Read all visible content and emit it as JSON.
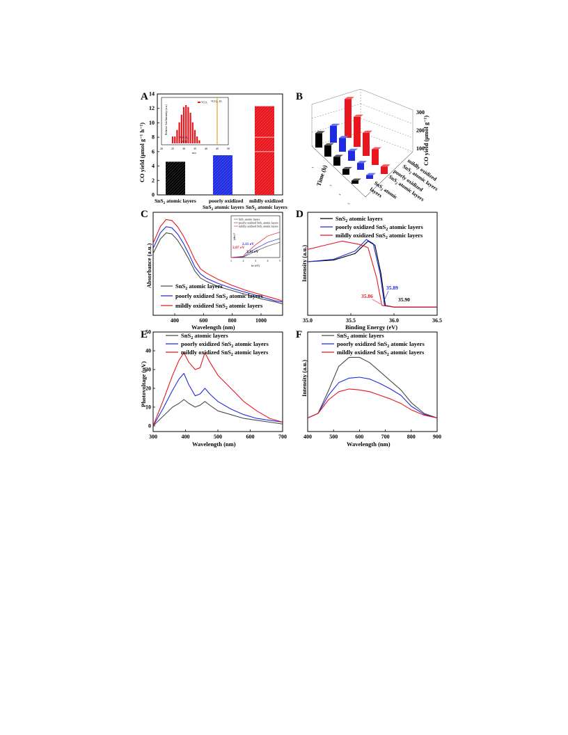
{
  "colors": {
    "black_series": "#000000",
    "blue_series": "#1f2be0",
    "red_series": "#e8151d",
    "grey_series": "#4a4a4a",
    "orange_marker": "#f0a030"
  },
  "panels": {
    "A": {
      "letter": "A",
      "ylabel": "CO yield (μmol g⁻¹ h⁻¹)",
      "xtick_labels": [
        "SnS₂ atomic layers",
        "poorly oxidized\nSnS₂ atomic layers",
        "mildly oxidized\nSnS₂ atomic layers"
      ],
      "inset": {
        "xlabel": "m/z",
        "legend": "¹³CO₂",
        "tag": "¹³CO₂: 45",
        "annotation_line1": "¹³CO   O₂",
        "annotation_line2": "29    32",
        "ylabel": "Relative Ion Intensity (a.u.)"
      }
    },
    "B": {
      "letter": "B",
      "zlabel": "CO yield (μmol g⁻¹)",
      "ylabel": "Time (h)",
      "series_labels": [
        "SnS₂ atomic layers",
        "poorly oxidized\nSnS₂ atomic layers",
        "mildly oxidized\nSnS₂ atomic layers"
      ]
    },
    "C": {
      "letter": "C",
      "xlabel": "Wavelength (nm)",
      "ylabel": "Absorbance (a.u.)",
      "legend": [
        "SnS₂ atomic layers",
        "poorly oxidized SnS₂ atomic layers",
        "mildly oxidized SnS₂ atomic layers"
      ],
      "inset": {
        "xlabel": "hν (eV)",
        "ylabel": "(αhν)²",
        "legend": [
          "SnS₂ atomic layers",
          "poorly oxidized SnS₂ atomic layers",
          "mildly oxidized SnS₂ atomic layers"
        ],
        "annotations": [
          "2.07 eV",
          "2.11 eV",
          "2.15 eV"
        ]
      }
    },
    "D": {
      "letter": "D",
      "xlabel": "Binding Energy (eV)",
      "ylabel": "Intensity (a.u.)",
      "legend": [
        "SnS₂ atomic layers",
        "poorly oxidized SnS₂ atomic layers",
        "mildly oxidized SnS₂ atomic layers"
      ],
      "annotations": [
        "35.86",
        "35.89",
        "35.90"
      ]
    },
    "E": {
      "letter": "E",
      "xlabel": "Wavelength (nm)",
      "ylabel": "Photovoltage (μV)",
      "legend": [
        "SnS₂ atomic layers",
        "poorly oxidized SnS₂ atomic layers",
        "mildly oxidized SnS₂ atomic layers"
      ]
    },
    "F": {
      "letter": "F",
      "xlabel": "Wavelength (nm)",
      "ylabel": "Intensity (a.u.)",
      "legend": [
        "SnS₂ atomic layers",
        "poorly oxidized SnS₂ atomic layers",
        "mildly oxidized SnS₂ atomic layers"
      ]
    }
  },
  "chart_data": [
    {
      "panel": "A",
      "type": "bar",
      "categories": [
        "SnS₂ atomic layers",
        "poorly oxidized SnS₂ atomic layers",
        "mildly oxidized SnS₂ atomic layers"
      ],
      "values": [
        4.6,
        5.5,
        12.3
      ],
      "colors": [
        "#000000",
        "#1f2be0",
        "#e8151d"
      ],
      "ylabel": "CO yield (μmol g⁻¹ h⁻¹)",
      "ylim": [
        0,
        14
      ],
      "yticks": [
        0,
        2,
        4,
        6,
        8,
        10,
        12,
        14
      ]
    },
    {
      "panel": "A-inset",
      "type": "bar",
      "x": [
        25,
        26,
        27,
        28,
        29,
        30,
        31,
        32,
        33,
        34,
        35,
        36,
        37
      ],
      "values": [
        0.18,
        0.18,
        0.35,
        0.55,
        0.75,
        0.95,
        1.0,
        0.95,
        0.8,
        0.55,
        0.35,
        0.18,
        0.08
      ],
      "xlabel": "m/z",
      "xlim": [
        20,
        50
      ],
      "xticks": [
        20,
        25,
        30,
        35,
        40,
        45,
        50
      ],
      "marker_x": 45,
      "grid": false
    },
    {
      "panel": "B",
      "type": "bar",
      "categories": [
        "1",
        "2",
        "3",
        "4",
        "5"
      ],
      "series": [
        {
          "name": "SnS₂ atomic layers",
          "values": [
            23,
            18,
            14,
            9,
            5
          ]
        },
        {
          "name": "poorly oxidized SnS₂ atomic layers",
          "values": [
            27,
            22,
            16,
            11,
            6
          ]
        },
        {
          "name": "mildly oxidized SnS₂ atomic layers",
          "values": [
            62,
            48,
            37,
            25,
            12
          ]
        }
      ],
      "zlabel": "CO yield (μmol g⁻¹)",
      "ylabel": "Time (h)",
      "zlim": [
        0,
        300
      ],
      "zticks": [
        100,
        200,
        300
      ]
    },
    {
      "panel": "C",
      "type": "line",
      "xlabel": "Wavelength (nm)",
      "ylabel": "Absorbance (a.u.)",
      "xlim": [
        250,
        1150
      ],
      "xticks": [
        400,
        600,
        800,
        1000
      ],
      "series": [
        {
          "name": "SnS₂ atomic layers",
          "x": [
            250,
            300,
            340,
            380,
            420,
            460,
            500,
            540,
            580,
            620,
            700,
            800,
            900,
            1000,
            1100,
            1150
          ],
          "y": [
            0.7,
            0.84,
            0.9,
            0.89,
            0.83,
            0.74,
            0.64,
            0.53,
            0.46,
            0.43,
            0.38,
            0.34,
            0.3,
            0.26,
            0.23,
            0.21
          ]
        },
        {
          "name": "poorly oxidized SnS₂ atomic layers",
          "x": [
            250,
            300,
            340,
            380,
            420,
            460,
            500,
            540,
            580,
            620,
            700,
            800,
            900,
            1000,
            1100,
            1150
          ],
          "y": [
            0.75,
            0.9,
            0.96,
            0.95,
            0.89,
            0.8,
            0.69,
            0.57,
            0.5,
            0.46,
            0.41,
            0.36,
            0.32,
            0.28,
            0.24,
            0.23
          ]
        },
        {
          "name": "mildly oxidized SnS₂ atomic layers",
          "x": [
            250,
            300,
            340,
            380,
            420,
            460,
            500,
            540,
            580,
            620,
            700,
            800,
            900,
            1000,
            1100,
            1150
          ],
          "y": [
            0.8,
            0.96,
            1.03,
            1.02,
            0.96,
            0.87,
            0.76,
            0.64,
            0.55,
            0.51,
            0.45,
            0.39,
            0.34,
            0.3,
            0.26,
            0.24
          ]
        }
      ]
    },
    {
      "panel": "C-inset",
      "type": "line",
      "xlabel": "hν (eV)",
      "ylabel": "(αhν)²",
      "xlim": [
        1,
        5
      ],
      "xticks": [
        1,
        2,
        3,
        4,
        5
      ],
      "series": [
        {
          "name": "SnS₂ atomic layers",
          "x": [
            1.0,
            2.0,
            2.15,
            3.0,
            4.0,
            5.0
          ],
          "y": [
            0.0,
            0.02,
            0.05,
            0.25,
            0.45,
            0.6
          ]
        },
        {
          "name": "poorly oxidized SnS₂ atomic layers",
          "x": [
            1.0,
            2.0,
            2.11,
            3.0,
            4.0,
            5.0
          ],
          "y": [
            0.0,
            0.03,
            0.07,
            0.35,
            0.6,
            0.75
          ]
        },
        {
          "name": "mildly oxidized SnS₂ atomic layers",
          "x": [
            1.0,
            2.0,
            2.07,
            3.0,
            4.0,
            5.0
          ],
          "y": [
            0.0,
            0.05,
            0.1,
            0.5,
            0.85,
            1.0
          ]
        }
      ]
    },
    {
      "panel": "D",
      "type": "line",
      "xlabel": "Binding Energy (eV)",
      "ylabel": "Intensity (a.u.)",
      "xlim": [
        35.0,
        36.5
      ],
      "xticks": [
        35.0,
        35.5,
        36.0,
        36.5
      ],
      "series": [
        {
          "name": "SnS₂ atomic layers",
          "x": [
            35.0,
            35.3,
            35.55,
            35.7,
            35.78,
            35.85,
            35.9,
            36.0,
            36.5
          ],
          "y": [
            0.55,
            0.57,
            0.65,
            0.8,
            0.75,
            0.4,
            0.02,
            0.0,
            0.0
          ]
        },
        {
          "name": "poorly oxidized SnS₂ atomic layers",
          "x": [
            35.0,
            35.3,
            35.55,
            35.68,
            35.76,
            35.84,
            35.89,
            36.0,
            36.5
          ],
          "y": [
            0.55,
            0.58,
            0.68,
            0.82,
            0.77,
            0.4,
            0.02,
            0.0,
            0.0
          ]
        },
        {
          "name": "mildly oxidized SnS₂ atomic layers",
          "x": [
            35.0,
            35.2,
            35.4,
            35.6,
            35.7,
            35.8,
            35.86,
            36.0,
            36.5
          ],
          "y": [
            0.7,
            0.75,
            0.8,
            0.76,
            0.72,
            0.35,
            0.02,
            0.0,
            0.0
          ]
        }
      ]
    },
    {
      "panel": "E",
      "type": "line",
      "xlabel": "Wavelength (nm)",
      "ylabel": "Photovoltage (μV)",
      "xlim": [
        300,
        700
      ],
      "ylim": [
        -3,
        50
      ],
      "xticks": [
        300,
        400,
        500,
        600,
        700
      ],
      "yticks": [
        0,
        10,
        20,
        30,
        40,
        50
      ],
      "series": [
        {
          "name": "SnS₂ atomic layers",
          "x": [
            300,
            330,
            360,
            380,
            395,
            410,
            430,
            445,
            460,
            475,
            500,
            540,
            580,
            620,
            660,
            700
          ],
          "y": [
            0,
            5,
            10,
            12,
            14,
            12,
            10,
            11,
            13,
            11,
            8,
            6,
            4,
            3,
            2,
            1
          ]
        },
        {
          "name": "poorly oxidized SnS₂ atomic layers",
          "x": [
            300,
            330,
            360,
            380,
            395,
            410,
            430,
            445,
            460,
            475,
            500,
            540,
            580,
            620,
            660,
            700
          ],
          "y": [
            0,
            9,
            19,
            25,
            28,
            22,
            16,
            17,
            20,
            17,
            13,
            9,
            6,
            4,
            3,
            2
          ]
        },
        {
          "name": "mildly oxidized SnS₂ atomic layers",
          "x": [
            300,
            330,
            360,
            380,
            395,
            410,
            430,
            445,
            460,
            475,
            500,
            540,
            580,
            620,
            660,
            700
          ],
          "y": [
            0,
            13,
            27,
            35,
            39,
            34,
            30,
            31,
            39,
            34,
            27,
            20,
            13,
            8,
            4,
            2
          ]
        }
      ]
    },
    {
      "panel": "F",
      "type": "line",
      "xlabel": "Wavelength (nm)",
      "ylabel": "Intensity (a.u.)",
      "xlim": [
        400,
        900
      ],
      "xticks": [
        400,
        500,
        600,
        700,
        800,
        900
      ],
      "series": [
        {
          "name": "SnS₂ atomic layers",
          "x": [
            400,
            440,
            480,
            520,
            560,
            600,
            640,
            680,
            720,
            760,
            800,
            850,
            900
          ],
          "y": [
            0.05,
            0.1,
            0.35,
            0.62,
            0.72,
            0.72,
            0.66,
            0.56,
            0.46,
            0.36,
            0.22,
            0.1,
            0.05
          ]
        },
        {
          "name": "poorly oxidized SnS₂ atomic layers",
          "x": [
            400,
            440,
            480,
            520,
            560,
            600,
            640,
            680,
            720,
            760,
            800,
            850,
            900
          ],
          "y": [
            0.05,
            0.1,
            0.3,
            0.44,
            0.49,
            0.5,
            0.48,
            0.43,
            0.37,
            0.3,
            0.18,
            0.09,
            0.05
          ]
        },
        {
          "name": "mildly oxidized SnS₂ atomic layers",
          "x": [
            400,
            440,
            480,
            520,
            560,
            600,
            640,
            680,
            720,
            760,
            800,
            850,
            900
          ],
          "y": [
            0.05,
            0.1,
            0.25,
            0.34,
            0.37,
            0.36,
            0.34,
            0.3,
            0.26,
            0.21,
            0.14,
            0.08,
            0.05
          ]
        }
      ]
    }
  ]
}
